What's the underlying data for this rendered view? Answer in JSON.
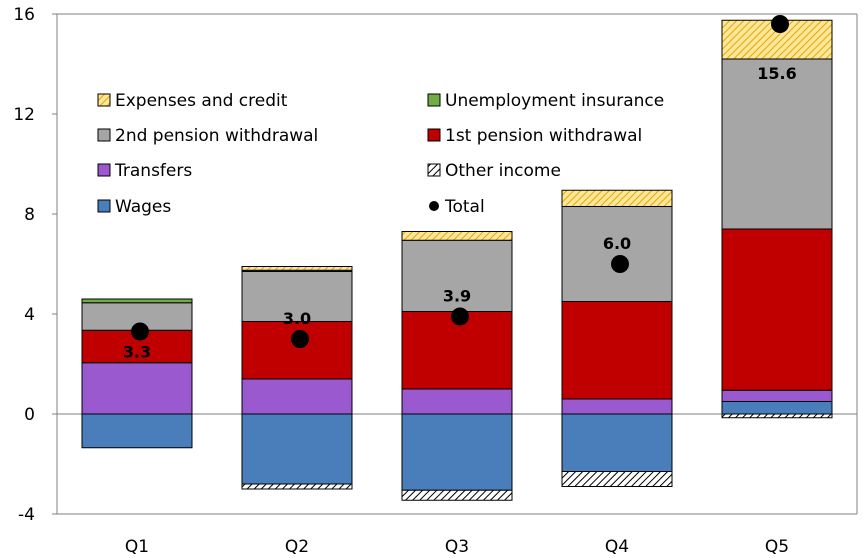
{
  "chart_data": {
    "type": "bar",
    "stacked": true,
    "categories": [
      "Q1",
      "Q2",
      "Q3",
      "Q4",
      "Q5"
    ],
    "ylim": [
      -4,
      16
    ],
    "yticks": [
      -4,
      0,
      4,
      8,
      12,
      16
    ],
    "series": [
      {
        "name": "Wages",
        "color": "#4a7ebb",
        "pattern": "solid",
        "values": [
          -1.35,
          -2.8,
          -3.05,
          -2.3,
          0.5
        ]
      },
      {
        "name": "Other income",
        "color": "#000000",
        "pattern": "hatch",
        "values": [
          0.0,
          -0.2,
          -0.4,
          -0.6,
          -0.15
        ]
      },
      {
        "name": "Transfers",
        "color": "#9b59d0",
        "pattern": "solid",
        "values": [
          2.05,
          1.4,
          1.0,
          0.6,
          0.45
        ]
      },
      {
        "name": "1st pension withdrawal",
        "color": "#c00000",
        "pattern": "solid",
        "values": [
          1.3,
          2.3,
          3.1,
          3.9,
          6.45
        ]
      },
      {
        "name": "2nd pension withdrawal",
        "color": "#a6a6a6",
        "pattern": "solid",
        "values": [
          1.1,
          2.0,
          2.85,
          3.8,
          6.8
        ]
      },
      {
        "name": "Unemployment insurance",
        "color": "#70ad47",
        "pattern": "solid",
        "values": [
          0.15,
          0.05,
          0.0,
          0.0,
          0.0
        ]
      },
      {
        "name": "Expenses and credit",
        "color": "#ffc000",
        "pattern": "yellow-hatch",
        "values": [
          0.0,
          0.15,
          0.35,
          0.65,
          1.55
        ]
      }
    ],
    "total": {
      "name": "Total",
      "values": [
        3.3,
        3.0,
        3.9,
        6.0,
        15.6
      ],
      "labels": [
        "3.3",
        "3.0",
        "3.9",
        "6.0",
        "15.6"
      ]
    },
    "legend_order": [
      "Expenses and credit",
      "Unemployment insurance",
      "2nd pension withdrawal",
      "1st pension withdrawal",
      "Transfers",
      "Other income",
      "Wages",
      "Total"
    ],
    "legend_position": "upper-left, inside plot, two columns",
    "title": "",
    "xlabel": "",
    "ylabel": ""
  }
}
